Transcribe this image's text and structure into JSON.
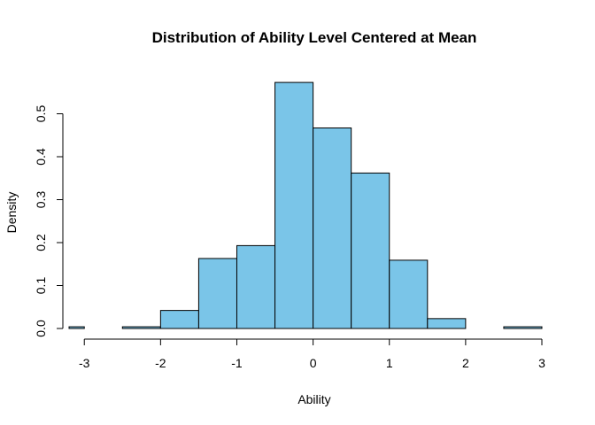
{
  "chart_data": {
    "type": "bar",
    "title": "Distribution of Ability Level Centered at Mean",
    "xlabel": "Ability",
    "ylabel": "Density",
    "xlim": [
      -3.2,
      3.0
    ],
    "ylim": [
      0,
      0.6
    ],
    "x_ticks": [
      -3,
      -2,
      -1,
      0,
      1,
      2,
      3
    ],
    "x_tick_labels": [
      "-3",
      "-2",
      "-1",
      "0",
      "1",
      "2",
      "3"
    ],
    "y_ticks": [
      0.0,
      0.1,
      0.2,
      0.3,
      0.4,
      0.5
    ],
    "y_tick_labels": [
      "0.0",
      "0.1",
      "0.2",
      "0.3",
      "0.4",
      "0.5"
    ],
    "bin_edges": [
      -3.5,
      -3.0,
      -2.5,
      -2.0,
      -1.5,
      -1.0,
      -0.5,
      0.0,
      0.5,
      1.0,
      1.5,
      2.0,
      2.5,
      3.0
    ],
    "values": [
      0.004,
      0.0,
      0.004,
      0.042,
      0.163,
      0.193,
      0.573,
      0.467,
      0.362,
      0.159,
      0.023,
      0.0,
      0.004
    ],
    "bar_color": "#7ac5e8",
    "grid": false,
    "legend": false
  }
}
